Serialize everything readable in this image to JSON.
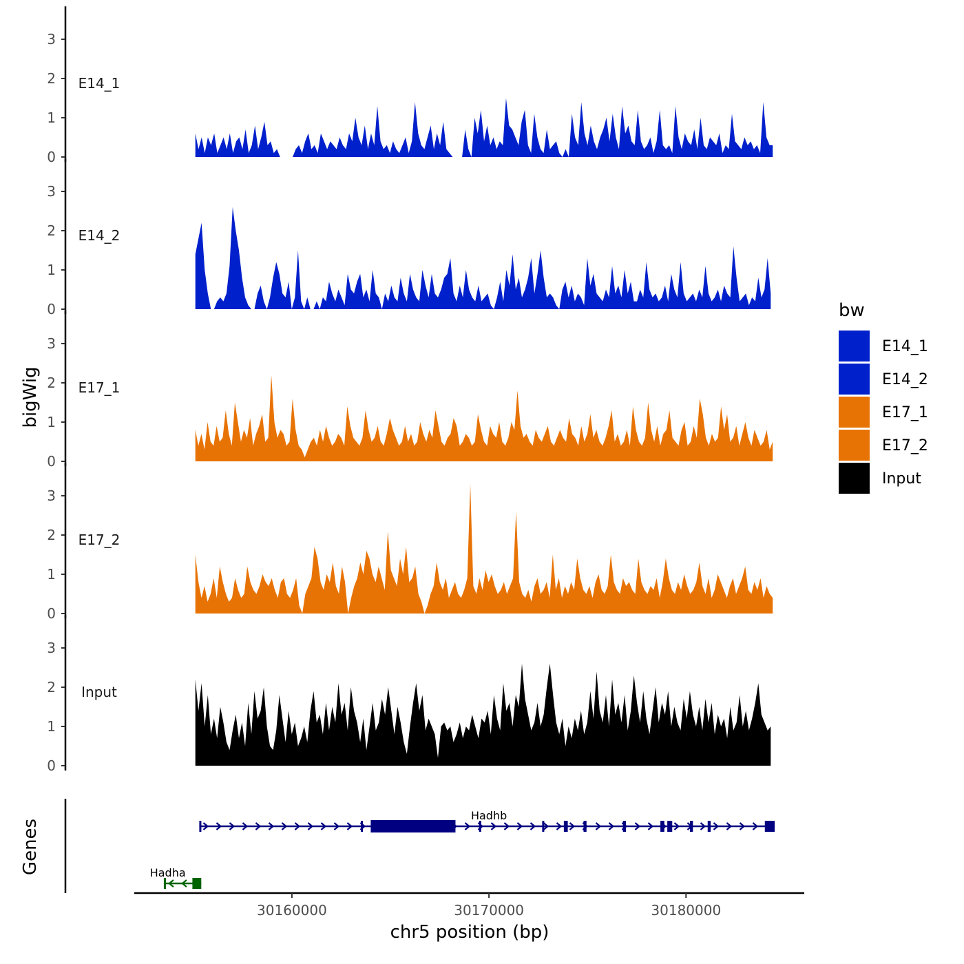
{
  "chart_data": {
    "type": "area",
    "title": "",
    "ylabel": "bigWig",
    "xlabel": "chr5 position (bp)",
    "gene_track_label": "Genes",
    "chromosome": "chr5",
    "xlim": [
      30152000,
      30186000
    ],
    "ylim": [
      0,
      3.4
    ],
    "x_ticks": [
      30160000,
      30170000,
      30180000
    ],
    "x_tick_labels": [
      "30160000",
      "30170000",
      "30180000"
    ],
    "y_ticks": [
      0,
      1,
      2,
      3
    ],
    "y_tick_labels": [
      "0",
      "1",
      "2",
      "3"
    ],
    "legend": {
      "title": "bw",
      "position": "right",
      "entries": [
        {
          "name": "E14_1",
          "color": "#0020CC"
        },
        {
          "name": "E14_2",
          "color": "#0020CC"
        },
        {
          "name": "E17_1",
          "color": "#E87305"
        },
        {
          "name": "E17_2",
          "color": "#E87305"
        },
        {
          "name": "Input",
          "color": "#000000"
        }
      ]
    },
    "series": [
      {
        "name": "E14_1",
        "color": "#0020CC",
        "x_start": 30155100,
        "x_end": 30184400,
        "values": [
          0.6,
          0.2,
          0.5,
          0.1,
          0.5,
          0.3,
          0.6,
          0.1,
          0.3,
          0.5,
          0.2,
          0.6,
          0.1,
          0.4,
          0.5,
          0.2,
          0.7,
          0.1,
          0.3,
          0.8,
          0.2,
          0.5,
          0.9,
          0.3,
          0.4,
          0.1,
          0.2,
          0,
          0,
          0,
          0,
          0,
          0.2,
          0.3,
          0.1,
          0.4,
          0.6,
          0.2,
          0.3,
          0.1,
          0.6,
          0.4,
          0.2,
          0.4,
          0.3,
          0.2,
          0.5,
          0.3,
          0.2,
          0.6,
          0.4,
          1.0,
          0.5,
          0.3,
          0.8,
          0.2,
          0.6,
          0.3,
          1.3,
          0.4,
          0.2,
          0.3,
          0.1,
          0.4,
          0.2,
          0.1,
          0.3,
          0.5,
          0.1,
          0.4,
          1.4,
          0.6,
          0.3,
          0.2,
          0.5,
          0.8,
          0.2,
          0.6,
          0.3,
          0.9,
          0.2,
          0.1,
          0,
          0,
          0,
          0,
          0.7,
          0.2,
          0,
          1.0,
          0.6,
          1.2,
          0.4,
          0.8,
          0.3,
          0.5,
          0.2,
          0.4,
          0.3,
          1.5,
          0.8,
          0.7,
          0.5,
          0.3,
          0.9,
          1.2,
          0.3,
          0.1,
          1.1,
          0.5,
          0.2,
          0.1,
          0.7,
          0.2,
          0.3,
          0.4,
          0.1,
          0,
          0.2,
          0,
          1.1,
          0.5,
          0.3,
          1.4,
          0.6,
          0.3,
          0.8,
          0.4,
          0.2,
          0.5,
          0.7,
          1.0,
          0.4,
          1.1,
          0.5,
          0.2,
          1.3,
          0.6,
          0.8,
          0.4,
          0.3,
          1.2,
          0.4,
          0.2,
          0.3,
          0.5,
          0.1,
          0.4,
          1.2,
          0.3,
          0.2,
          0.3,
          0.1,
          1.3,
          0.5,
          0.2,
          0.6,
          0.4,
          0.3,
          0.7,
          0.2,
          1.0,
          0.3,
          0.2,
          0.5,
          0.4,
          0.3,
          0.6,
          0.1,
          0.3,
          0.2,
          1.1,
          0.4,
          0.3,
          0.2,
          0.5,
          0.3,
          0.4,
          0.2,
          0.3,
          0.1,
          1.4,
          0.5,
          0.3,
          0.3
        ]
      },
      {
        "name": "E14_2",
        "color": "#0020CC",
        "x_start": 30155100,
        "x_end": 30184300,
        "values": [
          1.4,
          1.8,
          2.2,
          1.0,
          0.4,
          0,
          0,
          0.2,
          0.3,
          0.2,
          0.4,
          1.1,
          2.6,
          2.0,
          1.5,
          0.8,
          0.3,
          0.1,
          0,
          0,
          0.4,
          0.6,
          0.2,
          0,
          0.3,
          0.8,
          1.2,
          0.9,
          0.4,
          0.3,
          0.7,
          0,
          0.3,
          1.5,
          0.2,
          0,
          0.3,
          0,
          0,
          0.2,
          0,
          0.3,
          0.2,
          0.7,
          0.4,
          0.2,
          0.5,
          0.3,
          0.1,
          0.9,
          0.5,
          0.4,
          0.7,
          0.9,
          0.3,
          0.5,
          0.2,
          1.0,
          0.4,
          0.3,
          0,
          0.4,
          0.2,
          0.6,
          0.3,
          0.2,
          0.8,
          0.4,
          0.2,
          0.9,
          0.5,
          0.3,
          0.2,
          1.0,
          0.6,
          0.3,
          0.9,
          0.4,
          0.3,
          0.5,
          0.8,
          0.9,
          1.3,
          0.4,
          0.2,
          0.6,
          0.3,
          1.0,
          0.5,
          0.3,
          0.2,
          0.6,
          0.2,
          0.3,
          0.4,
          0.1,
          0,
          0.3,
          0.7,
          0.2,
          1.0,
          0.6,
          1.4,
          0.5,
          0.8,
          0.3,
          0.5,
          0.8,
          1.3,
          0.4,
          0.9,
          1.5,
          0.8,
          0.3,
          0.4,
          0.3,
          0.1,
          0,
          0.5,
          0.7,
          0.3,
          0.6,
          0.2,
          0.4,
          0.3,
          0.1,
          1.3,
          0.6,
          0.9,
          0.4,
          0.3,
          0.2,
          0.5,
          0.3,
          1.1,
          0.4,
          0.6,
          0.3,
          1.0,
          0.4,
          0.7,
          0.2,
          0.2,
          0.5,
          0.3,
          1.2,
          0.5,
          0.3,
          0.4,
          0.2,
          0.3,
          0.6,
          0.2,
          0.9,
          0.5,
          0.3,
          1.2,
          0.4,
          0.2,
          0.3,
          0.4,
          0.2,
          0.5,
          0.3,
          1.1,
          0.4,
          0.2,
          0.3,
          0.5,
          0.2,
          0.6,
          0.4,
          0.3,
          1.6,
          0.8,
          0.2,
          0.3,
          0.4,
          0.1,
          0.3,
          0.2,
          0.8,
          0.3,
          0.5,
          1.3,
          0.4
        ]
      },
      {
        "name": "E17_1",
        "color": "#E87305",
        "x_start": 30155100,
        "x_end": 30184400,
        "values": [
          0.8,
          0.4,
          0.7,
          0.3,
          1.0,
          0.5,
          0.4,
          0.9,
          0.5,
          0.6,
          1.3,
          0.7,
          0.4,
          1.5,
          1.0,
          0.5,
          0.8,
          0.6,
          1.1,
          0.4,
          0.7,
          0.9,
          1.2,
          0.5,
          0.6,
          2.2,
          1.0,
          0.6,
          0.8,
          0.7,
          0.4,
          0.5,
          1.6,
          0.8,
          0.4,
          0.3,
          0.1,
          0.3,
          0.5,
          0.6,
          0.4,
          0.8,
          0.5,
          0.9,
          0.6,
          0.4,
          0.5,
          0.7,
          0.6,
          0.4,
          1.4,
          0.9,
          0.6,
          0.5,
          0.4,
          0.6,
          1.3,
          0.8,
          0.5,
          0.6,
          0.9,
          0.5,
          0.4,
          0.7,
          1.1,
          0.8,
          0.6,
          0.4,
          0.5,
          0.9,
          0.5,
          0.7,
          0.4,
          0.5,
          1.0,
          0.7,
          0.5,
          0.8,
          0.6,
          1.3,
          0.9,
          0.5,
          0.4,
          0.6,
          0.7,
          1.1,
          0.9,
          0.4,
          0.5,
          0.7,
          0.6,
          0.4,
          0.5,
          1.2,
          0.8,
          0.5,
          0.4,
          0.9,
          0.7,
          0.6,
          1.0,
          0.5,
          0.4,
          0.6,
          1.0,
          0.8,
          1.8,
          0.9,
          0.6,
          0.7,
          0.5,
          0.4,
          0.8,
          0.6,
          0.5,
          0.7,
          0.9,
          0.5,
          0.4,
          0.6,
          0.8,
          0.6,
          0.5,
          1.1,
          0.7,
          0.6,
          0.4,
          0.9,
          0.5,
          0.7,
          1.2,
          0.6,
          0.8,
          0.5,
          0.4,
          0.6,
          0.9,
          1.3,
          0.5,
          0.7,
          0.4,
          0.5,
          0.8,
          0.4,
          1.4,
          0.8,
          0.5,
          0.4,
          0.6,
          1.5,
          0.8,
          0.5,
          0.9,
          0.4,
          0.7,
          0.8,
          1.3,
          0.6,
          0.5,
          0.4,
          0.8,
          1.0,
          0.4,
          0.5,
          0.9,
          0.6,
          1.6,
          1.2,
          0.6,
          0.4,
          0.7,
          0.5,
          0.6,
          1.4,
          0.8,
          1.2,
          0.5,
          0.6,
          0.9,
          0.4,
          0.7,
          1.0,
          0.6,
          0.4,
          0.8,
          0.6,
          0.4,
          0.5,
          0.8,
          0.3,
          0.5
        ]
      },
      {
        "name": "E17_2",
        "color": "#E87305",
        "x_start": 30155100,
        "x_end": 30184400,
        "values": [
          1.5,
          0.8,
          0.4,
          0.7,
          0.3,
          0.5,
          0.9,
          0.4,
          1.2,
          0.8,
          0.5,
          0.3,
          0.4,
          0.9,
          0.6,
          0.4,
          0.5,
          1.2,
          0.8,
          0.6,
          0.5,
          0.7,
          1.0,
          0.8,
          0.7,
          0.9,
          0.6,
          0.4,
          0.8,
          0.9,
          0.5,
          0.4,
          0.6,
          0.9,
          0.2,
          0,
          0.5,
          0.7,
          0.9,
          1.7,
          1.4,
          0.8,
          0.6,
          1.0,
          0.8,
          1.3,
          0.7,
          0.5,
          1.2,
          0.8,
          0,
          0.4,
          0.7,
          0.9,
          1.3,
          1.0,
          1.6,
          1.4,
          1.0,
          0.8,
          1.2,
          0.9,
          0.6,
          2.1,
          1.1,
          0.9,
          0.7,
          1.4,
          1.0,
          1.7,
          0.8,
          0.9,
          1.2,
          0.5,
          0.3,
          0,
          0.2,
          0.5,
          0.7,
          1.3,
          0.8,
          0.6,
          0.9,
          0.4,
          0.6,
          0.8,
          0.5,
          0.4,
          0.6,
          0.9,
          3.3,
          0.7,
          0.5,
          0.9,
          0.6,
          1.1,
          0.8,
          1.0,
          0.7,
          0.5,
          0.6,
          0.8,
          0.5,
          0.7,
          0.9,
          2.6,
          0.8,
          0.5,
          0.4,
          0.6,
          0.3,
          0.7,
          0.9,
          0.5,
          0.6,
          0.8,
          0.4,
          1.5,
          0.6,
          0.9,
          0.4,
          0.7,
          0.5,
          0.8,
          0.6,
          1.4,
          0.9,
          0.6,
          0.5,
          0.7,
          0.4,
          0.8,
          1.0,
          0.6,
          0.5,
          0.7,
          1.5,
          0.8,
          0.6,
          0.5,
          0.9,
          0.7,
          0.8,
          0.6,
          0.5,
          1.4,
          0.8,
          0.6,
          0.5,
          0.7,
          0.6,
          0.9,
          0.4,
          0.8,
          1.4,
          0.9,
          0.6,
          0.5,
          0.8,
          0.6,
          1.0,
          0.7,
          0.5,
          0.6,
          0.8,
          1.3,
          0.7,
          0.5,
          0.9,
          0.4,
          0.6,
          1.0,
          0.8,
          0.6,
          0.4,
          0.7,
          0.9,
          0.5,
          0.7,
          0.9,
          1.2,
          0.6,
          0.5,
          0.8,
          0.6,
          0.9,
          0.4,
          0.7,
          0.5,
          0.4
        ]
      },
      {
        "name": "Input",
        "color": "#000000",
        "x_start": 30155100,
        "x_end": 30184300,
        "values": [
          2.2,
          1.4,
          2.1,
          1.0,
          1.8,
          0.8,
          1.2,
          0.7,
          1.5,
          1.1,
          0.6,
          0.4,
          0.9,
          1.3,
          0.7,
          1.1,
          0.5,
          1.6,
          0.8,
          1.9,
          1.2,
          1.4,
          2.0,
          1.0,
          0.5,
          0.4,
          0.9,
          1.8,
          1.2,
          0.6,
          1.4,
          0.8,
          1.1,
          0.5,
          0.7,
          1.0,
          0.6,
          1.4,
          1.9,
          1.1,
          1.3,
          0.8,
          1.6,
          0.9,
          1.5,
          1.1,
          2.1,
          1.3,
          1.6,
          0.9,
          2.0,
          1.4,
          1.1,
          0.6,
          1.2,
          0.4,
          1.0,
          1.6,
          0.9,
          1.1,
          1.7,
          1.3,
          2.0,
          1.4,
          0.8,
          1.5,
          1.1,
          0.6,
          0.3,
          1.0,
          1.6,
          2.1,
          1.4,
          1.8,
          0.9,
          1.2,
          1.0,
          0.8,
          0.2,
          1.0,
          1.1,
          0.9,
          1.0,
          0.6,
          0.8,
          1.1,
          0.7,
          1.0,
          0.9,
          1.3,
          1.0,
          0.7,
          1.2,
          1.1,
          1.4,
          0.8,
          1.8,
          1.2,
          0.9,
          2.1,
          1.4,
          1.6,
          1.0,
          1.8,
          1.5,
          2.6,
          1.7,
          1.3,
          0.9,
          1.1,
          1.6,
          1.0,
          1.3,
          2.0,
          2.6,
          1.8,
          1.1,
          0.8,
          1.2,
          0.5,
          1.0,
          0.7,
          1.2,
          0.9,
          1.4,
          0.8,
          1.1,
          1.9,
          1.2,
          2.4,
          1.4,
          1.1,
          1.8,
          1.0,
          2.2,
          1.3,
          1.6,
          1.1,
          1.8,
          0.9,
          1.4,
          2.3,
          1.6,
          1.1,
          1.9,
          1.2,
          0.8,
          1.4,
          2.0,
          1.1,
          1.6,
          1.3,
          1.9,
          1.0,
          1.5,
          1.1,
          0.9,
          1.7,
          1.2,
          1.9,
          1.3,
          1.0,
          1.5,
          0.9,
          1.7,
          1.1,
          1.6,
          0.8,
          1.3,
          1.0,
          1.2,
          0.7,
          1.5,
          0.9,
          1.1,
          1.8,
          1.0,
          1.4,
          0.9,
          1.2,
          1.6,
          2.1,
          1.3,
          1.1,
          0.9,
          1.0
        ]
      }
    ],
    "genes": [
      {
        "name": "Hadhb",
        "strand": "+",
        "color": "#000080",
        "row": 0,
        "start": 30155300,
        "end": 30184500,
        "exons": [
          [
            30155300,
            30155400
          ],
          [
            30163500,
            30163600
          ],
          [
            30164000,
            30168300
          ],
          [
            30169500,
            30169600
          ],
          [
            30172700,
            30172800
          ],
          [
            30173800,
            30174000
          ],
          [
            30174800,
            30174950
          ],
          [
            30176800,
            30176950
          ],
          [
            30178700,
            30178900
          ],
          [
            30179050,
            30179300
          ],
          [
            30180200,
            30180350
          ],
          [
            30181100,
            30181250
          ],
          [
            30184000,
            30184500
          ]
        ],
        "label_x": 30170000
      },
      {
        "name": "Hadha",
        "strand": "-",
        "color": "#006400",
        "row": 1,
        "start": 30153500,
        "end": 30155400,
        "exons": [
          [
            30154950,
            30155400
          ],
          [
            30153500,
            30153580
          ]
        ],
        "label_x": 30154400
      }
    ]
  }
}
